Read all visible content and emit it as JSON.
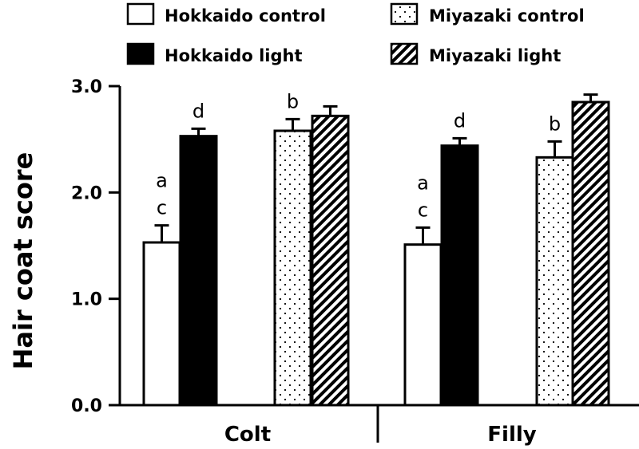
{
  "chart_data": {
    "type": "bar",
    "ylabel": "Hair coat score",
    "ylim": [
      0,
      3
    ],
    "yticks": [
      "0.0",
      "1.0",
      "2.0",
      "3.0"
    ],
    "categories": [
      "Colt",
      "Filly"
    ],
    "legend_position": "top",
    "series": [
      {
        "name": "Hokkaido control",
        "pattern": "white",
        "values": [
          1.53,
          1.51
        ],
        "errors": [
          0.16,
          0.16
        ],
        "sig": [
          "a\nc",
          "a\nc"
        ]
      },
      {
        "name": "Hokkaido light",
        "pattern": "black",
        "values": [
          2.53,
          2.44
        ],
        "errors": [
          0.07,
          0.07
        ],
        "sig": [
          "d",
          "d"
        ]
      },
      {
        "name": "Miyazaki control",
        "pattern": "dots",
        "values": [
          2.58,
          2.33
        ],
        "errors": [
          0.11,
          0.15
        ],
        "sig": [
          "b",
          "b"
        ]
      },
      {
        "name": "Miyazaki light",
        "pattern": "hatch",
        "values": [
          2.72,
          2.85
        ],
        "errors": [
          0.09,
          0.07
        ],
        "sig": [
          "",
          ""
        ]
      }
    ],
    "colors": {
      "axis": "#000000",
      "fill_control": "#ffffff",
      "fill_light": "#000000"
    }
  }
}
